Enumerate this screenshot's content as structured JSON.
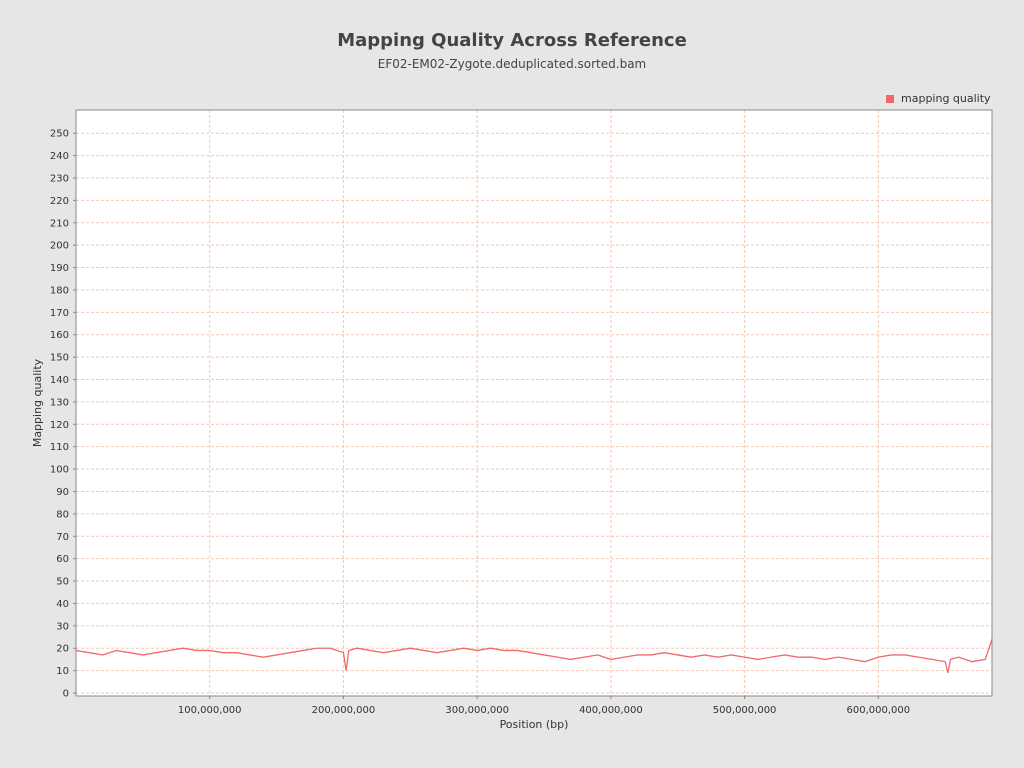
{
  "chart_data": {
    "type": "line",
    "title": "Mapping Quality Across Reference",
    "subtitle": "EF02-EM02-Zygote.deduplicated.sorted.bam",
    "xlabel": "Position (bp)",
    "ylabel": "Mapping quality",
    "xlim": [
      0,
      685000000
    ],
    "ylim": [
      0,
      255
    ],
    "x_ticks": [
      100000000,
      200000000,
      300000000,
      400000000,
      500000000,
      600000000
    ],
    "x_tick_labels": [
      "100,000,000",
      "200,000,000",
      "300,000,000",
      "400,000,000",
      "500,000,000",
      "600,000,000"
    ],
    "y_ticks": [
      0,
      10,
      20,
      30,
      40,
      50,
      60,
      70,
      80,
      90,
      100,
      110,
      120,
      130,
      140,
      150,
      160,
      170,
      180,
      190,
      200,
      210,
      220,
      230,
      240,
      250
    ],
    "grid": true,
    "legend_position": "top-right",
    "series": [
      {
        "name": "mapping quality",
        "color": "#f16a6a",
        "x": [
          0,
          10000000,
          20000000,
          30000000,
          40000000,
          50000000,
          60000000,
          70000000,
          80000000,
          90000000,
          100000000,
          110000000,
          120000000,
          130000000,
          140000000,
          150000000,
          160000000,
          170000000,
          180000000,
          190000000,
          200000000,
          202000000,
          204000000,
          210000000,
          220000000,
          230000000,
          240000000,
          250000000,
          260000000,
          270000000,
          280000000,
          290000000,
          300000000,
          310000000,
          320000000,
          330000000,
          340000000,
          350000000,
          360000000,
          370000000,
          380000000,
          390000000,
          400000000,
          410000000,
          420000000,
          430000000,
          440000000,
          450000000,
          460000000,
          470000000,
          480000000,
          490000000,
          500000000,
          510000000,
          520000000,
          530000000,
          540000000,
          550000000,
          560000000,
          570000000,
          580000000,
          590000000,
          600000000,
          610000000,
          620000000,
          630000000,
          640000000,
          650000000,
          652000000,
          654000000,
          660000000,
          670000000,
          680000000,
          685000000
        ],
        "values": [
          19,
          18,
          17,
          19,
          18,
          17,
          18,
          19,
          20,
          19,
          19,
          18,
          18,
          17,
          16,
          17,
          18,
          19,
          20,
          20,
          18,
          10,
          19,
          20,
          19,
          18,
          19,
          20,
          19,
          18,
          19,
          20,
          19,
          20,
          19,
          19,
          18,
          17,
          16,
          15,
          16,
          17,
          15,
          16,
          17,
          17,
          18,
          17,
          16,
          17,
          16,
          17,
          16,
          15,
          16,
          17,
          16,
          16,
          15,
          16,
          15,
          14,
          16,
          17,
          17,
          16,
          15,
          14,
          9,
          15,
          16,
          14,
          15,
          24
        ]
      }
    ]
  }
}
